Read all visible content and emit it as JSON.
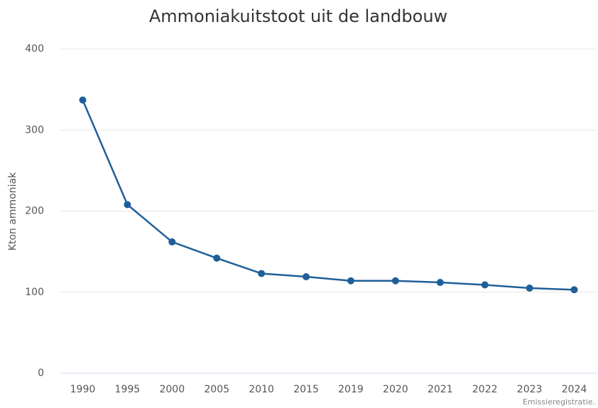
{
  "chart_data": {
    "type": "line",
    "title": "Ammoniakuitstoot uit de landbouw",
    "y_label": "Kton ammoniak",
    "credit": "Emissieregistratie.",
    "categories": [
      "1990",
      "1995",
      "2000",
      "2005",
      "2010",
      "2015",
      "2019",
      "2020",
      "2021",
      "2022",
      "2023",
      "2024"
    ],
    "values": [
      337,
      208,
      162,
      142,
      123,
      119,
      114,
      114,
      112,
      109,
      105,
      103
    ],
    "color": "#1f5f99",
    "ylim": [
      0,
      400
    ],
    "yticks": [
      0,
      100,
      200,
      300,
      400
    ],
    "grid": true
  }
}
